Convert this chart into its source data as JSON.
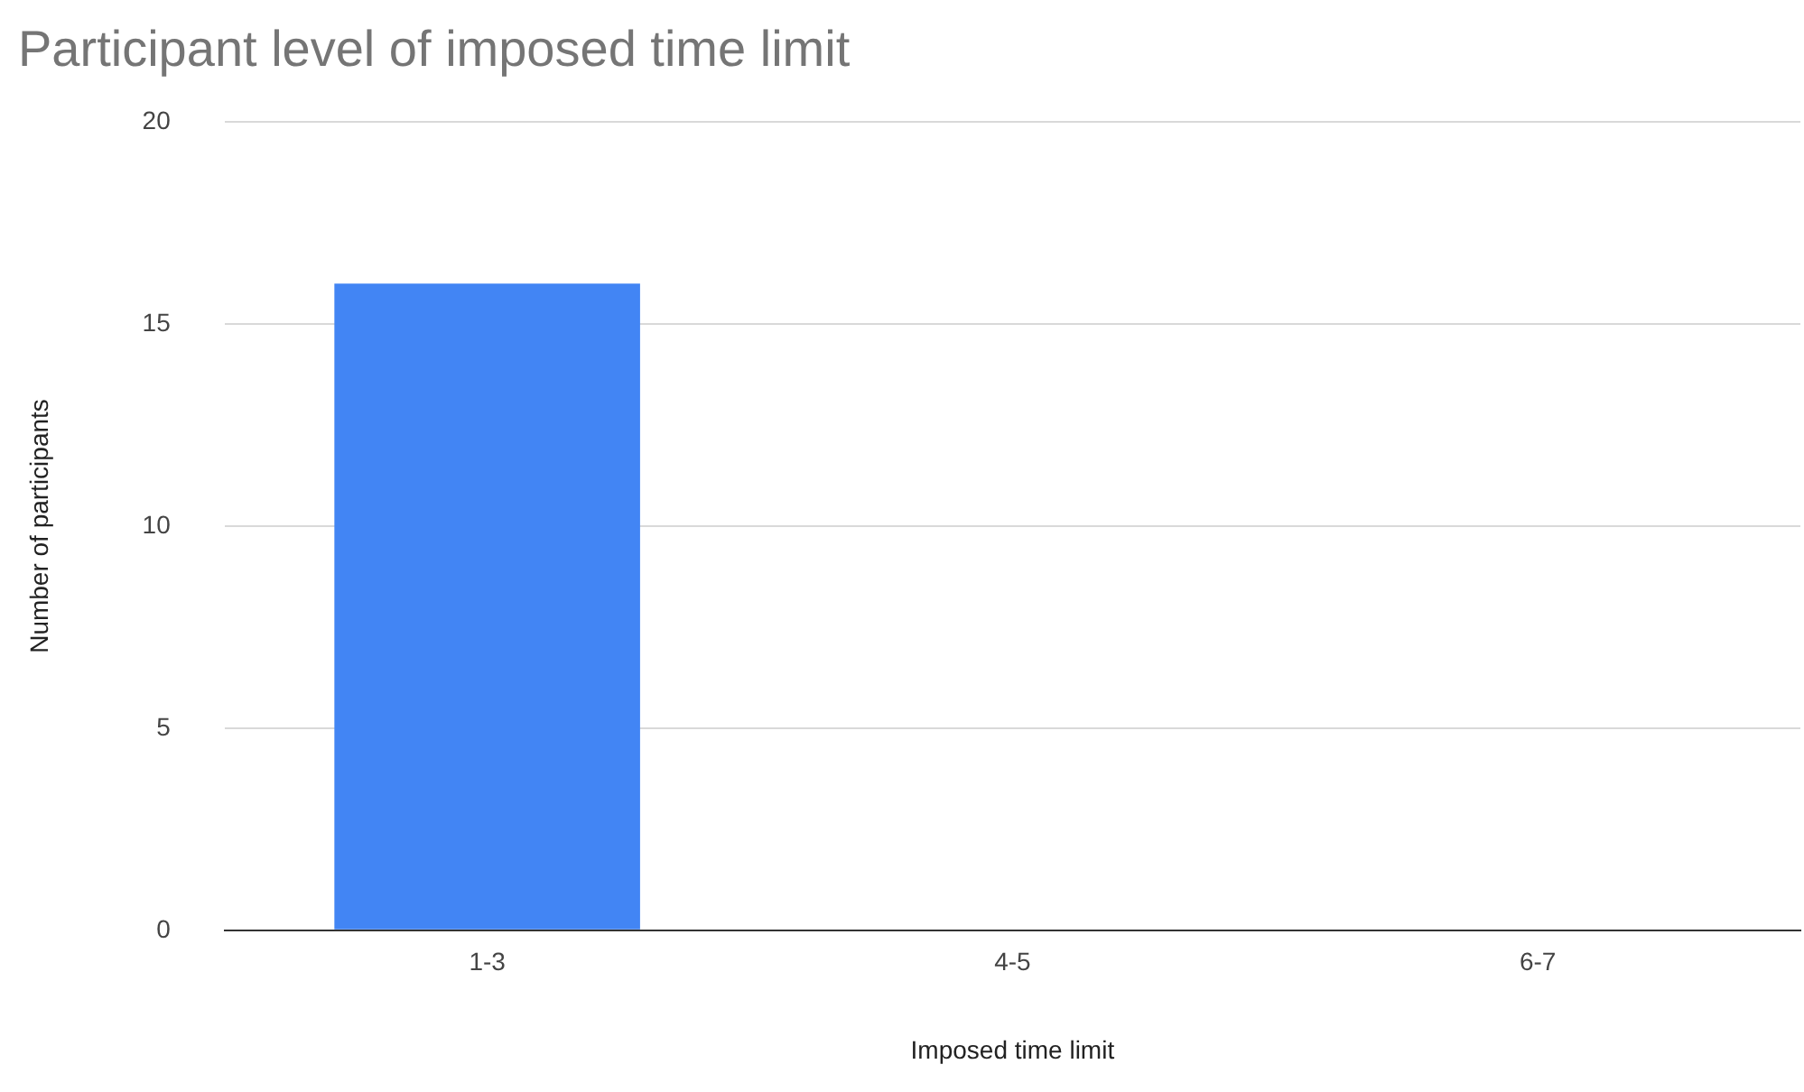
{
  "chart_data": {
    "type": "bar",
    "title": "Participant level of imposed time limit",
    "xlabel": "Imposed time limit",
    "ylabel": "Number of participants",
    "categories": [
      "1-3",
      "4-5",
      "6-7"
    ],
    "values": [
      16,
      0,
      0
    ],
    "color": "#4285f4",
    "ylim": [
      0,
      20
    ],
    "yticks": [
      0,
      5,
      10,
      15,
      20
    ],
    "grid": "y",
    "legend": false
  }
}
